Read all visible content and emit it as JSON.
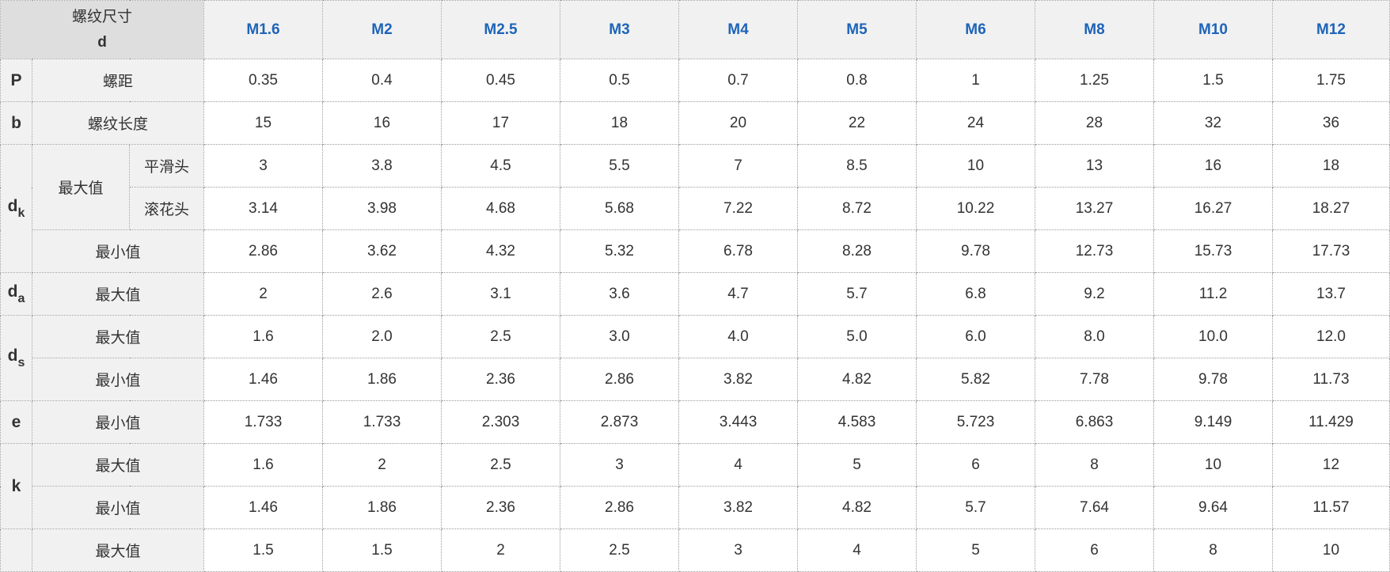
{
  "corner": {
    "line1": "螺纹尺寸",
    "line2": "d"
  },
  "sizes": [
    "M1.6",
    "M2",
    "M2.5",
    "M3",
    "M4",
    "M5",
    "M6",
    "M8",
    "M10",
    "M12"
  ],
  "labels": {
    "pitch": "螺距",
    "thread_length": "螺纹长度",
    "max": "最大值",
    "min": "最小值",
    "smooth_head": "平滑头",
    "knurled_head": "滚花头"
  },
  "symbols": {
    "P": "P",
    "b": "b",
    "dk": {
      "base": "d",
      "sub": "k"
    },
    "da": {
      "base": "d",
      "sub": "a"
    },
    "ds": {
      "base": "d",
      "sub": "s"
    },
    "e": "e",
    "k": "k"
  },
  "rows": {
    "P": [
      "0.35",
      "0.4",
      "0.45",
      "0.5",
      "0.7",
      "0.8",
      "1",
      "1.25",
      "1.5",
      "1.75"
    ],
    "b": [
      "15",
      "16",
      "17",
      "18",
      "20",
      "22",
      "24",
      "28",
      "32",
      "36"
    ],
    "dk_max_smooth": [
      "3",
      "3.8",
      "4.5",
      "5.5",
      "7",
      "8.5",
      "10",
      "13",
      "16",
      "18"
    ],
    "dk_max_knurled": [
      "3.14",
      "3.98",
      "4.68",
      "5.68",
      "7.22",
      "8.72",
      "10.22",
      "13.27",
      "16.27",
      "18.27"
    ],
    "dk_min": [
      "2.86",
      "3.62",
      "4.32",
      "5.32",
      "6.78",
      "8.28",
      "9.78",
      "12.73",
      "15.73",
      "17.73"
    ],
    "da_max": [
      "2",
      "2.6",
      "3.1",
      "3.6",
      "4.7",
      "5.7",
      "6.8",
      "9.2",
      "11.2",
      "13.7"
    ],
    "ds_max": [
      "1.6",
      "2.0",
      "2.5",
      "3.0",
      "4.0",
      "5.0",
      "6.0",
      "8.0",
      "10.0",
      "12.0"
    ],
    "ds_min": [
      "1.46",
      "1.86",
      "2.36",
      "2.86",
      "3.82",
      "4.82",
      "5.82",
      "7.78",
      "9.78",
      "11.73"
    ],
    "e_min": [
      "1.733",
      "1.733",
      "2.303",
      "2.873",
      "3.443",
      "4.583",
      "5.723",
      "6.863",
      "9.149",
      "11.429"
    ],
    "k_max": [
      "1.6",
      "2",
      "2.5",
      "3",
      "4",
      "5",
      "6",
      "8",
      "10",
      "12"
    ],
    "k_min": [
      "1.46",
      "1.86",
      "2.36",
      "2.86",
      "3.82",
      "4.82",
      "5.7",
      "7.64",
      "9.64",
      "11.57"
    ],
    "s_max": [
      "1.5",
      "1.5",
      "2",
      "2.5",
      "3",
      "4",
      "5",
      "6",
      "8",
      "10"
    ]
  }
}
